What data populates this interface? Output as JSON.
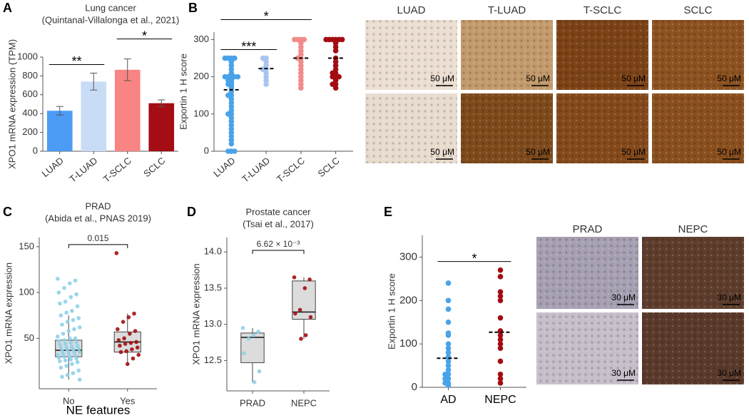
{
  "figure": {
    "panel_labels": [
      "A",
      "B",
      "C",
      "D",
      "E"
    ],
    "image_panels": [
      {
        "columns": [
          "LUAD",
          "T-LUAD",
          "T-SCLC",
          "SCLC"
        ],
        "scale_bar": "50 μM"
      },
      {
        "columns": [
          "PRAD",
          "NEPC"
        ],
        "scale_bar": "30 μM"
      }
    ]
  },
  "chart_data": [
    {
      "type": "bar",
      "title": "Lung cancer",
      "subtitle": "(Quintanal-Villalonga et al., 2021)",
      "ylabel": "XPO1 mRNA expression (TPM)",
      "categories": [
        "LUAD",
        "T-LUAD",
        "T-SCLC",
        "SCLC"
      ],
      "values": [
        430,
        740,
        865,
        510
      ],
      "errors": [
        45,
        90,
        115,
        35
      ],
      "colors": [
        "#4c9bf5",
        "#c9dcf6",
        "#f98484",
        "#a50d14"
      ],
      "ylim": [
        0,
        1000
      ],
      "yticks": [
        0,
        200,
        400,
        600,
        800,
        1000
      ],
      "annotations": [
        {
          "text": "**",
          "from": "LUAD",
          "to": "T-LUAD"
        },
        {
          "text": "*",
          "from": "T-SCLC",
          "to": "SCLC"
        }
      ]
    },
    {
      "type": "strip",
      "ylabel": "Exportin 1 H score",
      "categories": [
        "LUAD",
        "T-LUAD",
        "T-SCLC",
        "SCLC"
      ],
      "colors": [
        "#4aa3e8",
        "#a9c4ef",
        "#f28b8b",
        "#a30d12"
      ],
      "points": [
        [
          250,
          250,
          250,
          250,
          240,
          230,
          220,
          210,
          205,
          200,
          200,
          200,
          200,
          200,
          195,
          190,
          190,
          185,
          180,
          180,
          175,
          170,
          160,
          150,
          150,
          140,
          130,
          120,
          110,
          100,
          100,
          90,
          80,
          70,
          60,
          50,
          40,
          30,
          20,
          0,
          0,
          0
        ],
        [
          250,
          250,
          240,
          230,
          220,
          220,
          210,
          200,
          190,
          180
        ],
        [
          300,
          300,
          300,
          300,
          290,
          280,
          270,
          260,
          250,
          250,
          240,
          230,
          220,
          210,
          200,
          190,
          180,
          170
        ],
        [
          300,
          300,
          300,
          300,
          300,
          300,
          290,
          280,
          270,
          250,
          240,
          230,
          220,
          210,
          210,
          200,
          200,
          200,
          190,
          180,
          180,
          170
        ]
      ],
      "means": [
        165,
        222,
        250,
        250
      ],
      "ylim": [
        0,
        320
      ],
      "yticks": [
        0,
        100,
        200,
        300
      ],
      "annotations": [
        {
          "text": "***",
          "from": "LUAD",
          "to": "T-LUAD"
        },
        {
          "text": "*",
          "from": "LUAD",
          "to": "T-SCLC"
        }
      ]
    },
    {
      "type": "box",
      "title": "PRAD",
      "subtitle": "(Abida et al., PNAS 2019)",
      "ylabel": "XPO1 mRNA expression",
      "xlabel": "NE features",
      "categories": [
        "No",
        "Yes"
      ],
      "colors": [
        "#8fd0e8",
        "#a30d12"
      ],
      "boxes": [
        {
          "whisker_low": 5,
          "q1": 30,
          "median": 37,
          "q3": 48,
          "whisker_high": 75
        },
        {
          "whisker_low": 20,
          "q1": 35,
          "median": 46,
          "q3": 57,
          "whisker_high": 77
        }
      ],
      "points": [
        [
          115,
          113,
          110,
          105,
          100,
          98,
          95,
          90,
          88,
          85,
          80,
          78,
          75,
          72,
          70,
          68,
          65,
          62,
          60,
          58,
          55,
          52,
          50,
          50,
          48,
          47,
          46,
          45,
          44,
          43,
          42,
          41,
          40,
          40,
          39,
          38,
          37,
          36,
          35,
          35,
          34,
          33,
          32,
          31,
          30,
          30,
          29,
          28,
          27,
          26,
          25,
          24,
          22,
          20,
          18,
          15,
          12,
          10,
          8,
          5
        ],
        [
          143,
          77,
          73,
          68,
          60,
          58,
          55,
          50,
          48,
          46,
          45,
          44,
          42,
          40,
          38,
          36,
          35,
          32,
          28,
          22
        ]
      ],
      "ylim": [
        -5,
        160
      ],
      "yticks": [
        50,
        100,
        150
      ],
      "annotations": [
        {
          "text": "0.015",
          "from": "No",
          "to": "Yes"
        }
      ]
    },
    {
      "type": "box",
      "title": "Prostate cancer",
      "subtitle": "(Tsai et al., 2017)",
      "ylabel": "XPO1 mRNA expression",
      "categories": [
        "PRAD",
        "NEPC"
      ],
      "colors": [
        "#8fd0e8",
        "#a30d12"
      ],
      "boxes": [
        {
          "whisker_low": 12.2,
          "q1": 12.47,
          "median": 12.82,
          "q3": 12.88,
          "whisker_high": 12.95
        },
        {
          "whisker_low": 12.8,
          "q1": 13.07,
          "median": 13.17,
          "q3": 13.6,
          "whisker_high": 13.65
        }
      ],
      "points": [
        [
          12.95,
          12.9,
          12.85,
          12.8,
          12.6,
          12.35,
          12.2
        ],
        [
          13.65,
          13.62,
          13.5,
          13.2,
          13.15,
          13.1,
          12.85,
          12.8
        ]
      ],
      "ylim": [
        12.08,
        14.2
      ],
      "yticks": [
        12.5,
        {
          "value": 13,
          "label": "13.0"
        },
        13.5,
        {
          "value": 14,
          "label": "14.0"
        }
      ],
      "annotations": [
        {
          "text": "6.62 × 10⁻³",
          "from": "PRAD",
          "to": "NEPC"
        }
      ]
    },
    {
      "type": "strip",
      "ylabel": "Exportin 1 H score",
      "categories": [
        "AD",
        "NEPC"
      ],
      "colors": [
        "#4aa3e8",
        "#a30d12"
      ],
      "points": [
        [
          240,
          200,
          180,
          150,
          125,
          120,
          100,
          90,
          80,
          70,
          60,
          50,
          40,
          30,
          30,
          20,
          20,
          10,
          10,
          5
        ],
        [
          270,
          255,
          220,
          210,
          200,
          160,
          130,
          120,
          110,
          100,
          90,
          60,
          30,
          20,
          10
        ]
      ],
      "means": [
        67,
        127
      ],
      "ylim": [
        0,
        350
      ],
      "yticks": [
        0,
        100,
        200,
        300
      ],
      "annotations": [
        {
          "text": "*",
          "from": "AD",
          "to": "NEPC"
        }
      ]
    }
  ]
}
